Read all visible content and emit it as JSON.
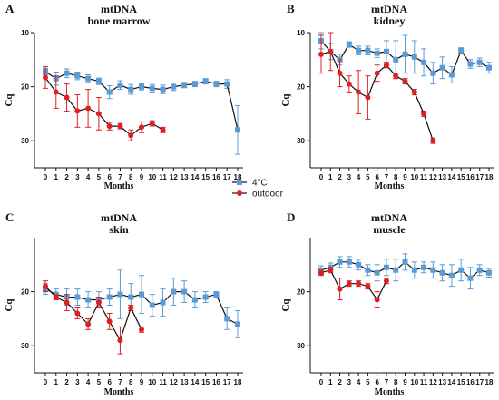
{
  "legend": [
    {
      "label": "4°C",
      "color": "#5b9bd5",
      "marker": "square"
    },
    {
      "label": "outdoor",
      "color": "#e02020",
      "marker": "circle"
    }
  ],
  "chart_data": [
    {
      "type": "line",
      "panel_letter": "A",
      "title": "mtDNA",
      "subtitle": "bone marrow",
      "xlabel": "Months",
      "ylabel": "Cq",
      "ylim": [
        10,
        35
      ],
      "y_inverted": true,
      "yticks": [
        10,
        20,
        30
      ],
      "x": [
        0,
        1,
        2,
        3,
        4,
        5,
        6,
        7,
        8,
        9,
        10,
        11,
        12,
        13,
        14,
        15,
        16,
        17,
        18
      ],
      "series": [
        {
          "name": "4°C",
          "x": [
            0,
            1,
            2,
            3,
            4,
            5,
            6,
            7,
            8,
            9,
            10,
            11,
            12,
            13,
            14,
            15,
            16,
            17,
            18
          ],
          "values": [
            17.2,
            18.5,
            17.5,
            18.0,
            18.5,
            19.0,
            21.0,
            19.7,
            20.5,
            20.0,
            20.3,
            20.5,
            20.0,
            19.7,
            19.5,
            19.0,
            19.5,
            19.5,
            28.0
          ],
          "err": [
            0.6,
            1.2,
            0.8,
            0.7,
            0.7,
            0.6,
            1.2,
            0.8,
            0.9,
            0.6,
            0.7,
            0.8,
            0.7,
            0.5,
            0.5,
            0.5,
            0.5,
            0.8,
            4.5
          ]
        },
        {
          "name": "outdoor",
          "x": [
            0,
            1,
            2,
            3,
            4,
            5,
            6,
            7,
            8,
            9,
            10,
            11
          ],
          "values": [
            18.3,
            21.0,
            22.0,
            24.5,
            24.0,
            25.0,
            27.3,
            27.3,
            29.0,
            27.5,
            26.8,
            28.0
          ],
          "err": [
            2.0,
            3.0,
            2.5,
            3.0,
            3.5,
            3.0,
            0.7,
            0.5,
            1.0,
            1.0,
            0.5,
            0.5
          ]
        }
      ]
    },
    {
      "type": "line",
      "panel_letter": "B",
      "title": "mtDNA",
      "subtitle": "kidney",
      "xlabel": "Months",
      "ylabel": "Cq",
      "ylim": [
        10,
        35
      ],
      "y_inverted": true,
      "yticks": [
        10,
        20,
        30
      ],
      "x": [
        0,
        1,
        2,
        3,
        4,
        5,
        6,
        7,
        8,
        9,
        10,
        11,
        12,
        13,
        14,
        15,
        16,
        17,
        18
      ],
      "series": [
        {
          "name": "4°C",
          "x": [
            0,
            1,
            2,
            3,
            4,
            5,
            6,
            7,
            8,
            9,
            10,
            11,
            12,
            13,
            14,
            15,
            16,
            17,
            18
          ],
          "values": [
            11.5,
            13.5,
            15.0,
            12.2,
            13.3,
            13.3,
            13.8,
            13.5,
            15.0,
            14.0,
            14.5,
            15.5,
            17.5,
            16.5,
            17.8,
            13.3,
            15.8,
            15.5,
            16.5
          ],
          "err": [
            1.5,
            1.5,
            1.0,
            0.5,
            0.8,
            0.8,
            0.8,
            2.0,
            3.5,
            3.5,
            3.0,
            2.5,
            2.0,
            2.0,
            1.5,
            0.5,
            0.8,
            0.8,
            1.0
          ]
        },
        {
          "name": "outdoor",
          "x": [
            0,
            1,
            2,
            3,
            4,
            5,
            6,
            7,
            8,
            9,
            10,
            11,
            12
          ],
          "values": [
            14.0,
            13.5,
            17.5,
            19.5,
            21.0,
            22.0,
            17.5,
            16.0,
            18.0,
            19.0,
            21.0,
            25.0,
            30.0
          ],
          "err": [
            3.5,
            3.5,
            2.5,
            1.5,
            4.0,
            4.0,
            1.5,
            0.5,
            0.5,
            0.5,
            0.5,
            0.5,
            0.5
          ]
        }
      ]
    },
    {
      "type": "line",
      "panel_letter": "C",
      "title": "mtDNA",
      "subtitle": "skin",
      "xlabel": "Months",
      "ylabel": "Cq",
      "ylim": [
        10,
        35
      ],
      "y_inverted": true,
      "yticks": [
        20,
        30
      ],
      "x": [
        0,
        1,
        2,
        3,
        4,
        5,
        6,
        7,
        8,
        9,
        10,
        11,
        12,
        13,
        14,
        15,
        16,
        17,
        18
      ],
      "series": [
        {
          "name": "4°C",
          "x": [
            0,
            1,
            2,
            3,
            4,
            5,
            6,
            7,
            8,
            9,
            10,
            11,
            12,
            13,
            14,
            15,
            16,
            17,
            18
          ],
          "values": [
            19.5,
            20.5,
            21.0,
            21.0,
            21.5,
            21.5,
            21.0,
            20.5,
            21.0,
            20.5,
            22.5,
            22.0,
            20.0,
            20.0,
            21.5,
            21.0,
            20.5,
            25.0,
            26.0
          ],
          "err": [
            1.0,
            1.0,
            1.5,
            1.5,
            1.5,
            1.5,
            1.5,
            4.5,
            2.5,
            3.5,
            2.0,
            2.5,
            2.5,
            2.0,
            1.5,
            1.0,
            0.5,
            2.0,
            2.5
          ]
        },
        {
          "name": "outdoor",
          "x": [
            0,
            1,
            2,
            3,
            4,
            5,
            6,
            7,
            8,
            9
          ],
          "values": [
            19.0,
            21.0,
            22.0,
            24.0,
            26.0,
            22.0,
            25.5,
            29.0,
            23.0,
            27.0
          ],
          "err": [
            1.0,
            0.5,
            1.5,
            1.0,
            1.0,
            1.0,
            1.5,
            2.5,
            0.5,
            0.5
          ]
        }
      ]
    },
    {
      "type": "line",
      "panel_letter": "D",
      "title": "mtDNA",
      "subtitle": "muscle",
      "xlabel": "Months",
      "ylabel": "Cq",
      "ylim": [
        10,
        35
      ],
      "y_inverted": true,
      "yticks": [
        20,
        30
      ],
      "x": [
        0,
        1,
        2,
        3,
        4,
        5,
        6,
        7,
        8,
        9,
        10,
        11,
        12,
        13,
        14,
        15,
        16,
        17,
        18
      ],
      "series": [
        {
          "name": "4°C",
          "x": [
            0,
            1,
            2,
            3,
            4,
            5,
            6,
            7,
            8,
            9,
            10,
            11,
            12,
            13,
            14,
            15,
            16,
            17,
            18
          ],
          "values": [
            16.0,
            15.5,
            14.5,
            14.5,
            15.0,
            16.0,
            16.5,
            15.5,
            16.0,
            14.5,
            16.0,
            15.5,
            16.0,
            16.5,
            17.0,
            16.0,
            17.5,
            16.0,
            16.5
          ],
          "err": [
            0.8,
            0.8,
            1.0,
            1.0,
            1.0,
            1.0,
            1.5,
            1.5,
            2.0,
            1.5,
            1.5,
            1.0,
            1.5,
            1.5,
            2.0,
            2.0,
            2.0,
            1.0,
            0.8
          ]
        },
        {
          "name": "outdoor",
          "x": [
            0,
            1,
            2,
            3,
            4,
            5,
            6,
            7
          ],
          "values": [
            16.5,
            16.0,
            19.5,
            18.5,
            18.5,
            19.0,
            21.5,
            18.0
          ],
          "err": [
            0.5,
            0.5,
            2.0,
            0.5,
            0.5,
            0.5,
            1.5,
            0.5
          ]
        }
      ]
    }
  ]
}
